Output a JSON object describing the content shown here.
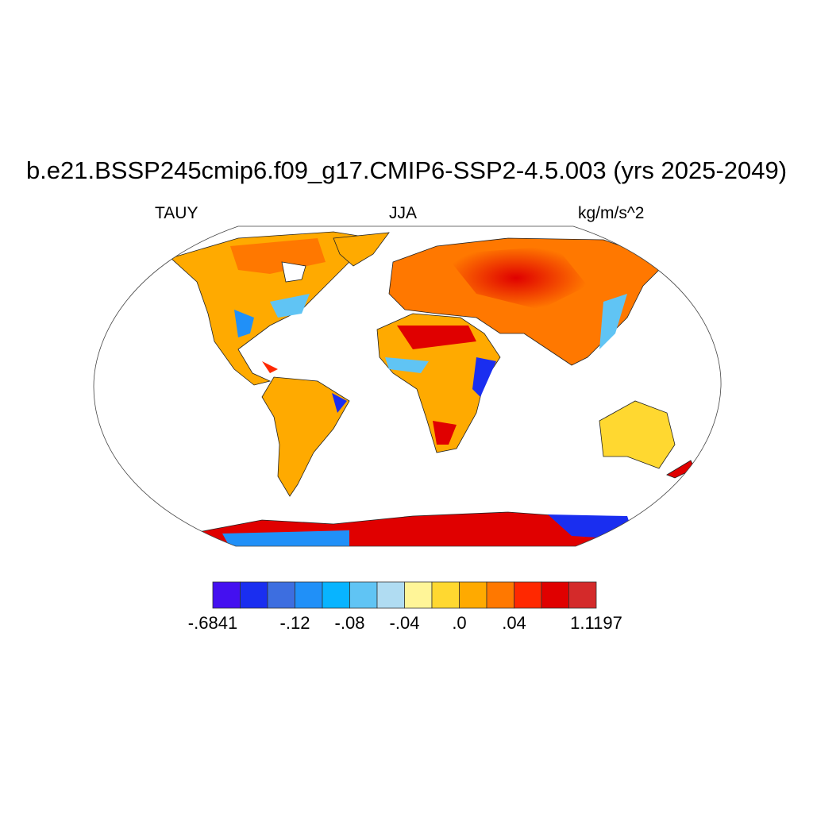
{
  "title": "b.e21.BSSP245cmip6.f09_g17.CMIP6-SSP2-4.5.003 (yrs 2025-2049)",
  "left_string": "TAUY",
  "center_string": "JJA",
  "right_string": "kg/m/s^2",
  "map": {
    "projection": "Robinson",
    "field": "TAUY",
    "coastlines": true
  },
  "colorbar": {
    "colors": [
      "#4410f0",
      "#1a2ef0",
      "#3d6ee0",
      "#2090f8",
      "#08b4ff",
      "#60c4f4",
      "#b0dcf2",
      "#fff598",
      "#ffd830",
      "#ffaa00",
      "#ff7800",
      "#ff2800",
      "#e00000",
      "#d42a2a"
    ],
    "labels": [
      "-.6841",
      "-.12",
      "-.08",
      "-.04",
      ".0",
      ".04",
      "1.1197"
    ],
    "label_boundaries": [
      0,
      3,
      5,
      7,
      9,
      11,
      14
    ]
  }
}
